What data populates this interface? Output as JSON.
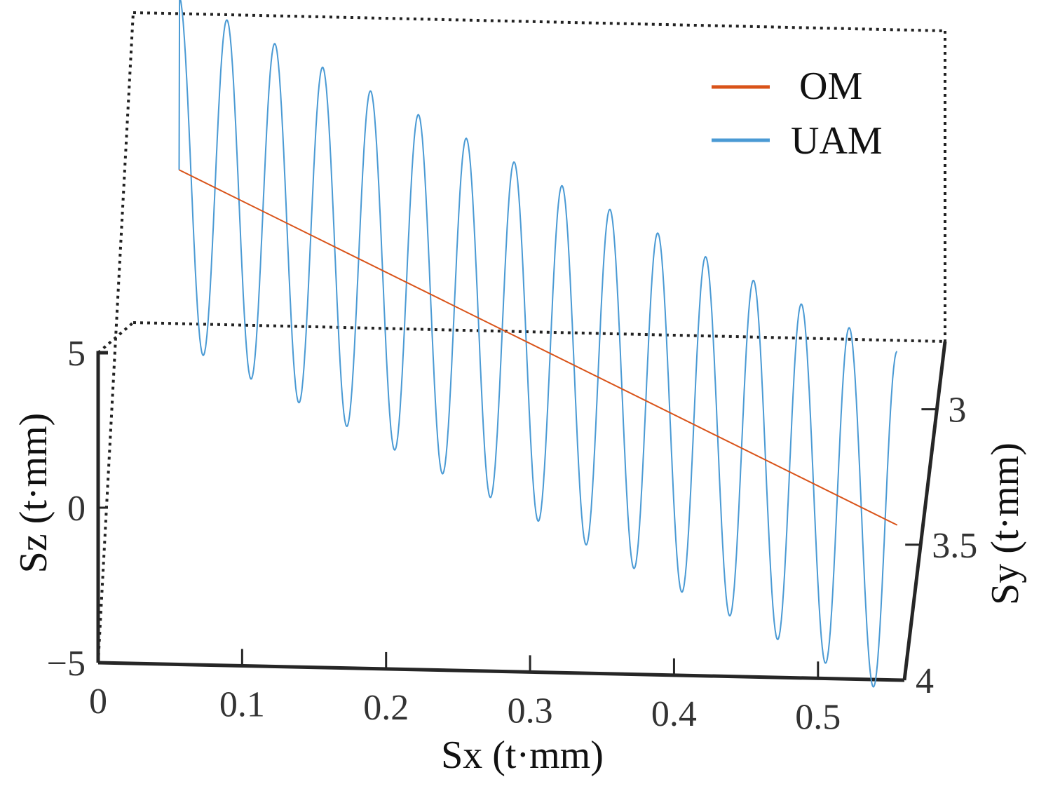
{
  "chart_data": {
    "type": "line",
    "title": "",
    "xlabel": "Sx (t·mm)",
    "ylabel": "Sz (t·mm)",
    "zlabel": "Sy (t·mm)",
    "xlim": [
      0,
      0.56
    ],
    "zlim": [
      -5,
      5
    ],
    "ylim": [
      2.75,
      4
    ],
    "x_ticks": [
      0,
      0.1,
      0.2,
      0.3,
      0.4,
      0.5
    ],
    "x_tick_labels": [
      "0",
      "0.1",
      "0.2",
      "0.3",
      "0.4",
      "0.5"
    ],
    "z_ticks": [
      -5,
      0,
      5
    ],
    "z_tick_labels": [
      "−5",
      "0",
      "5"
    ],
    "y_ticks": [
      3,
      3.5,
      4
    ],
    "y_tick_labels": [
      "3",
      "3.5",
      "4"
    ],
    "legend_position": "top-right",
    "series": [
      {
        "name": "OM",
        "color": "#d95319",
        "x": [
          0.028,
          0.555
        ],
        "y": [
          2.75,
          4.0
        ],
        "z": [
          0,
          0
        ]
      },
      {
        "name": "UAM",
        "color": "#4a9ad4",
        "x_range": [
          0.028,
          0.555
        ],
        "y_range": [
          2.75,
          4.0
        ],
        "z": 0,
        "oscillation": {
          "cycles": 15,
          "amplitude": 5.6,
          "start_phase": "peak"
        }
      }
    ]
  }
}
